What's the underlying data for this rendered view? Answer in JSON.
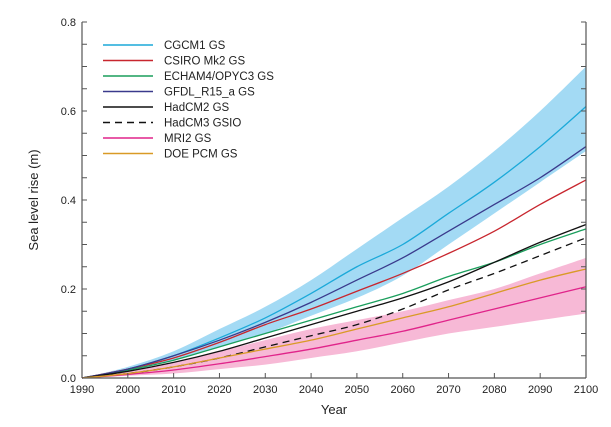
{
  "chart_data": {
    "type": "line",
    "title": "",
    "xlabel": "Year",
    "ylabel": "Sea level rise (m)",
    "xlim": [
      1990,
      2100
    ],
    "ylim": [
      0,
      0.8
    ],
    "xticks": [
      1990,
      2000,
      2010,
      2020,
      2030,
      2040,
      2050,
      2060,
      2070,
      2080,
      2090,
      2100
    ],
    "yticks": [
      "0.0",
      "0.2",
      "0.4",
      "0.6",
      "0.8"
    ],
    "grid": false,
    "legend_position": "top-left",
    "x": [
      1990,
      2000,
      2010,
      2020,
      2030,
      2040,
      2050,
      2060,
      2070,
      2080,
      2090,
      2100
    ],
    "bands": [
      {
        "color": "#a3daf4",
        "upper": [
          0,
          0.025,
          0.06,
          0.11,
          0.16,
          0.22,
          0.29,
          0.36,
          0.43,
          0.51,
          0.6,
          0.7
        ],
        "lower": [
          0,
          0.015,
          0.04,
          0.07,
          0.1,
          0.14,
          0.18,
          0.23,
          0.3,
          0.37,
          0.44,
          0.51
        ]
      },
      {
        "color": "#f7b9d6",
        "upper": [
          0,
          0.015,
          0.035,
          0.06,
          0.085,
          0.11,
          0.13,
          0.15,
          0.175,
          0.2,
          0.235,
          0.27
        ],
        "lower": [
          0,
          0.005,
          0.01,
          0.02,
          0.03,
          0.045,
          0.06,
          0.08,
          0.1,
          0.115,
          0.13,
          0.145
        ]
      }
    ],
    "series": [
      {
        "name": "CGCM1 GS",
        "color": "#1ba9d9",
        "dash": false,
        "values": [
          0,
          0.02,
          0.05,
          0.09,
          0.135,
          0.19,
          0.25,
          0.3,
          0.37,
          0.44,
          0.52,
          0.61
        ]
      },
      {
        "name": "CSIRO Mk2 GS",
        "color": "#c8262e",
        "dash": false,
        "values": [
          0,
          0.02,
          0.045,
          0.08,
          0.12,
          0.155,
          0.195,
          0.235,
          0.28,
          0.33,
          0.39,
          0.445
        ]
      },
      {
        "name": "ECHAM4/OPYC3 GS",
        "color": "#1a9e5c",
        "dash": false,
        "values": [
          0,
          0.018,
          0.04,
          0.07,
          0.1,
          0.13,
          0.16,
          0.19,
          0.228,
          0.26,
          0.3,
          0.335
        ]
      },
      {
        "name": "GFDL_R15_a GS",
        "color": "#3a3a8c",
        "dash": false,
        "values": [
          0,
          0.02,
          0.05,
          0.085,
          0.125,
          0.17,
          0.22,
          0.27,
          0.33,
          0.39,
          0.45,
          0.52
        ]
      },
      {
        "name": "HadCM2 GS",
        "color": "#111111",
        "dash": false,
        "values": [
          0,
          0.015,
          0.035,
          0.06,
          0.09,
          0.12,
          0.15,
          0.18,
          0.216,
          0.26,
          0.305,
          0.345
        ]
      },
      {
        "name": "HadCM3 GSIO",
        "color": "#111111",
        "dash": true,
        "values": [
          0,
          0.01,
          0.025,
          0.045,
          0.07,
          0.095,
          0.12,
          0.155,
          0.198,
          0.235,
          0.275,
          0.315
        ]
      },
      {
        "name": "MRI2 GS",
        "color": "#e0248a",
        "dash": false,
        "values": [
          0,
          0.008,
          0.018,
          0.032,
          0.048,
          0.065,
          0.085,
          0.105,
          0.13,
          0.155,
          0.18,
          0.205
        ]
      },
      {
        "name": "DOE PCM GS",
        "color": "#d99a26",
        "dash": false,
        "values": [
          0,
          0.01,
          0.025,
          0.045,
          0.065,
          0.085,
          0.11,
          0.135,
          0.16,
          0.19,
          0.22,
          0.245
        ]
      }
    ]
  }
}
